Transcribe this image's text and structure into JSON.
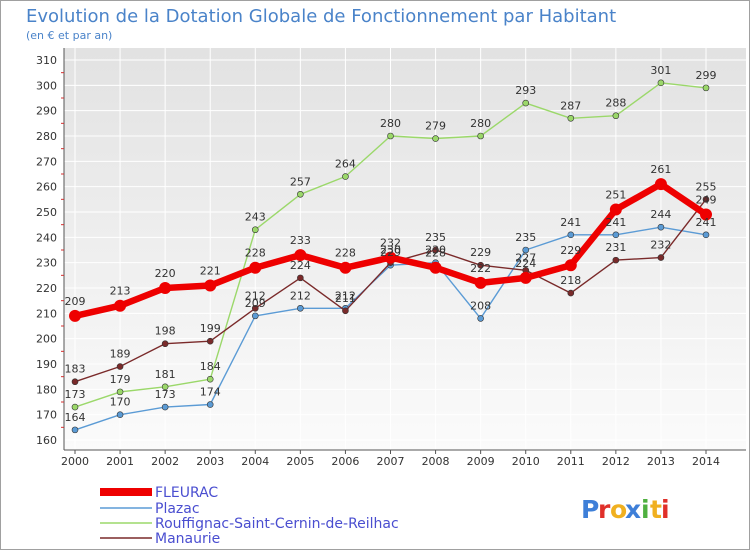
{
  "chart_data": {
    "type": "line",
    "title": "Evolution de la Dotation Globale de Fonctionnement par Habitant",
    "subtitle": "(en € et par an)",
    "xlabel": "",
    "ylabel": "",
    "ylim": [
      160,
      310
    ],
    "ystep": 10,
    "grid": true,
    "legend_position": "bottom-left",
    "categories": [
      "2000",
      "2001",
      "2002",
      "2003",
      "2004",
      "2005",
      "2006",
      "2007",
      "2008",
      "2009",
      "2010",
      "2011",
      "2012",
      "2013",
      "2014"
    ],
    "series": [
      {
        "name": "FLEURAC",
        "color": "#ee0000",
        "values": [
          209,
          213,
          220,
          221,
          228,
          233,
          228,
          232,
          228,
          222,
          224,
          229,
          251,
          261,
          249
        ],
        "labels": [
          "209",
          "213",
          "220",
          "221",
          "228",
          "233",
          "228",
          "232",
          "228",
          "222",
          "224",
          "229",
          "251",
          "261",
          "249"
        ]
      },
      {
        "name": "Plazac",
        "color": "#5b9bd5",
        "values": [
          164,
          170,
          173,
          174,
          209,
          212,
          212,
          229,
          230,
          208,
          235,
          241,
          241,
          244,
          241
        ],
        "labels": [
          "164",
          "170",
          "173",
          "174",
          "209",
          "212",
          "212",
          "229",
          "230",
          "208",
          "235",
          "241",
          "241",
          "244",
          "241"
        ]
      },
      {
        "name": "Rouffignac-Saint-Cernin-de-Reilhac",
        "color": "#9bd86a",
        "values": [
          173,
          179,
          181,
          184,
          243,
          257,
          264,
          280,
          279,
          280,
          293,
          287,
          288,
          301,
          299
        ],
        "labels": [
          "173",
          "179",
          "181",
          "184",
          "243",
          "257",
          "264",
          "280",
          "279",
          "280",
          "293",
          "287",
          "288",
          "301",
          "299"
        ]
      },
      {
        "name": "Manaurie",
        "color": "#7a2a2a",
        "values": [
          183,
          189,
          198,
          199,
          212,
          224,
          211,
          230,
          235,
          229,
          227,
          218,
          231,
          232,
          255
        ],
        "labels": [
          "183",
          "189",
          "198",
          "199",
          "212",
          "224",
          "211",
          "230",
          "235",
          "229",
          "227",
          "218",
          "231",
          "232",
          "255"
        ]
      }
    ]
  },
  "logo": {
    "letters": [
      "P",
      "r",
      "o",
      "x",
      "i",
      "t",
      "i"
    ],
    "colors": [
      "#3e7fd8",
      "#e0302a",
      "#f0b020",
      "#3e7fd8",
      "#4fb040",
      "#f0b020",
      "#e0302a"
    ]
  }
}
